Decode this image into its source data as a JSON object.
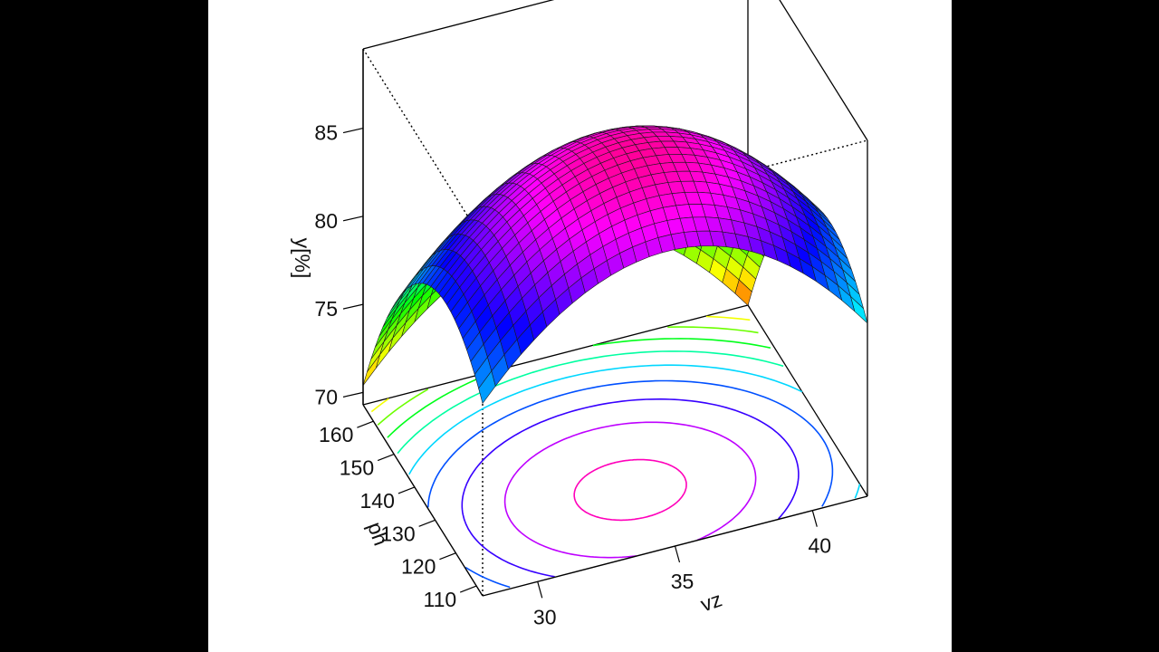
{
  "chart_data": {
    "type": "surface3d",
    "title": "",
    "z_label": "y[%]",
    "x_label": "vz",
    "y_label": "ph",
    "x_ticks": [
      30,
      35,
      40
    ],
    "y_ticks": [
      110,
      120,
      130,
      140,
      150,
      160
    ],
    "z_ticks": [
      70,
      75,
      80,
      85
    ],
    "x_range": [
      28,
      42
    ],
    "y_range": [
      107,
      165
    ],
    "z_range": [
      69.3,
      89.5
    ],
    "surface_model": {
      "form": "quadratic",
      "peak_z": 88.5,
      "peak_x": 34.7,
      "peak_y": 124.7,
      "curvature_x": 0.132,
      "curvature_y": 0.0075
    },
    "contour_levels": [
      72,
      74,
      76,
      78,
      80,
      82,
      84,
      86,
      88
    ],
    "colors": {
      "background": "#ffffff",
      "outer_background": "#000000",
      "box": "#000000",
      "mesh": "#1a1a1a"
    }
  }
}
